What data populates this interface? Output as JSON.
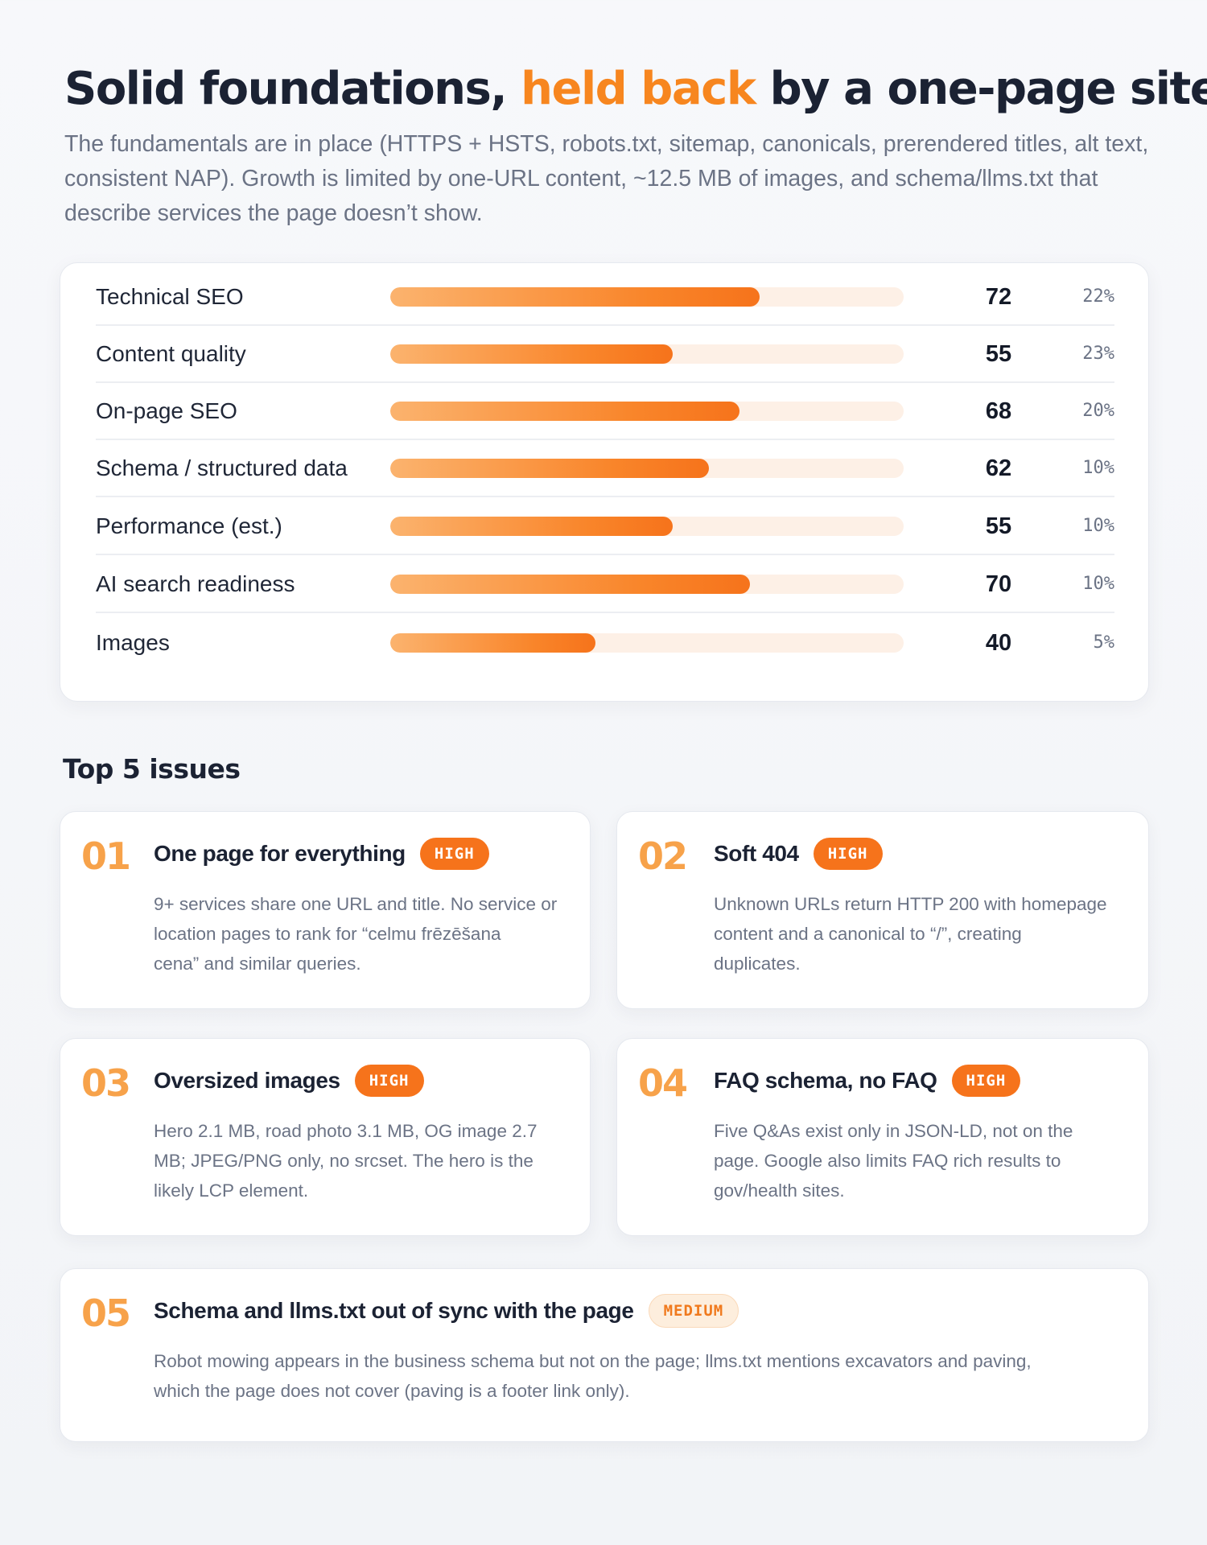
{
  "header": {
    "title_pre": "Solid foundations, ",
    "title_accent": "held back",
    "title_post": " by a one-page site",
    "intro": "The fundamentals are in place (HTTPS + HSTS, robots.txt, sitemap, canonicals, prerendered titles, alt text, consistent NAP). Growth is limited by one-URL content, ~12.5 MB of images, and schema/llms.txt that describe services the page doesn’t show."
  },
  "scores": [
    {
      "label": "Technical SEO",
      "score": 72,
      "weight": "22%"
    },
    {
      "label": "Content quality",
      "score": 55,
      "weight": "23%"
    },
    {
      "label": "On-page SEO",
      "score": 68,
      "weight": "20%"
    },
    {
      "label": "Schema / structured data",
      "score": 62,
      "weight": "10%"
    },
    {
      "label": "Performance (est.)",
      "score": 55,
      "weight": "10%"
    },
    {
      "label": "AI search readiness",
      "score": 70,
      "weight": "10%"
    },
    {
      "label": "Images",
      "score": 40,
      "weight": "5%"
    }
  ],
  "issues_section": {
    "title": "Top 5 issues",
    "issues": [
      {
        "num": "01",
        "title": "One page for everything",
        "severity": "HIGH",
        "lines": [
          "9+ services share one URL and title. No service or",
          "location pages to rank for “celmu frēzēšana",
          "cena” and similar queries."
        ]
      },
      {
        "num": "02",
        "title": "Soft 404",
        "severity": "HIGH",
        "lines": [
          "Unknown URLs return HTTP 200 with homepage",
          "content and a canonical to “/”, creating",
          "duplicates."
        ]
      },
      {
        "num": "03",
        "title": "Oversized images",
        "severity": "HIGH",
        "lines": [
          "Hero 2.1 MB, road photo 3.1 MB, OG image 2.7",
          "MB; JPEG/PNG only, no srcset. The hero is the",
          "likely LCP element."
        ]
      },
      {
        "num": "04",
        "title": "FAQ schema, no FAQ",
        "severity": "HIGH",
        "lines": [
          "Five Q&As exist only in JSON-LD, not on the",
          "page. Google also limits FAQ rich results to",
          "gov/health sites."
        ]
      },
      {
        "num": "05",
        "title": "Schema and llms.txt out of sync with the page",
        "severity": "MEDIUM",
        "lines": [
          "Robot mowing appears in the business schema but not on the page; llms.txt mentions excavators and paving,",
          "which the page does not cover (paving is a footer link only)."
        ]
      }
    ]
  },
  "colors": {
    "accent": "#f7861f",
    "badge_high": "#f6731b",
    "badge_medium_bg": "#fdeedd",
    "number": "#f7a24a"
  }
}
